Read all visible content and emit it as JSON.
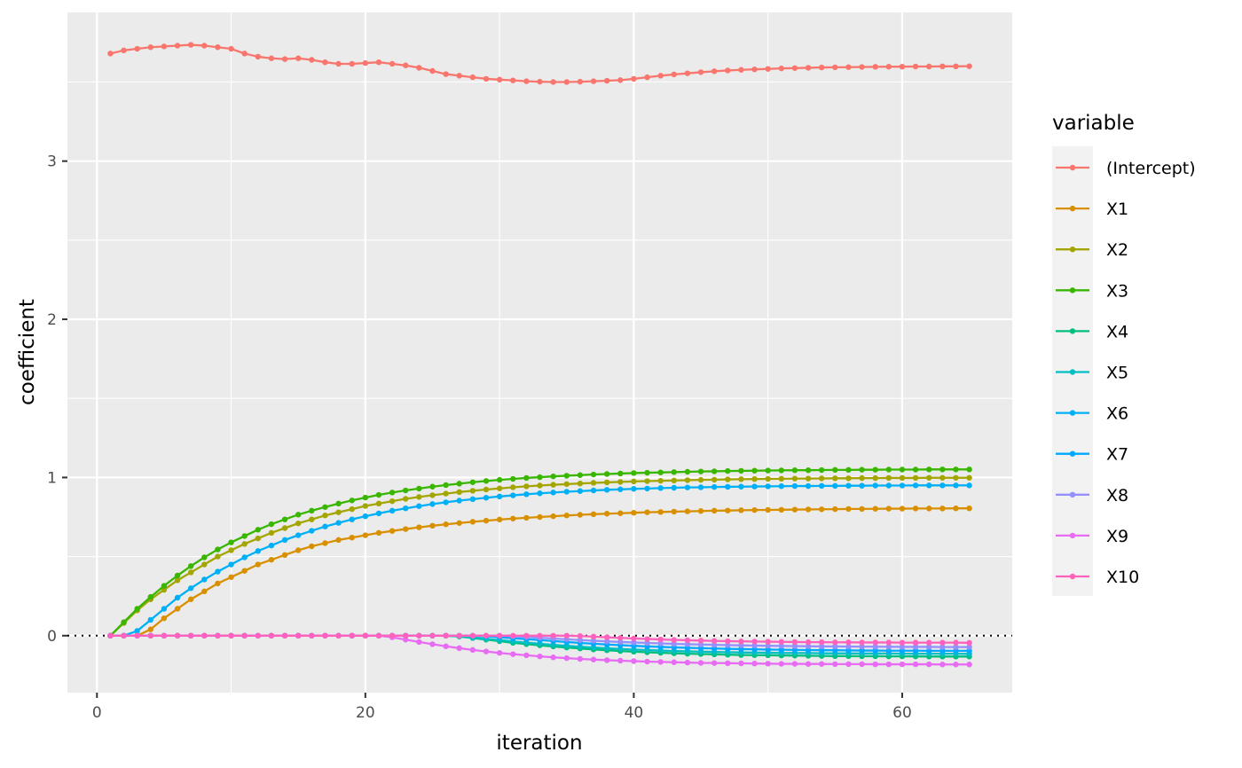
{
  "chart_data": {
    "type": "line",
    "xlabel": "iteration",
    "ylabel": "coefficient",
    "xlim": [
      -2.2,
      68.2
    ],
    "ylim": [
      -0.36,
      3.94
    ],
    "x_ticks": [
      0,
      20,
      40,
      60
    ],
    "x_tick_labels": [
      "0",
      "20",
      "40",
      "60"
    ],
    "y_ticks": [
      0,
      1,
      2,
      3
    ],
    "y_tick_labels": [
      "0",
      "1",
      "2",
      "3"
    ],
    "grid": true,
    "reference_line": {
      "y": 0,
      "style": "dotted",
      "color": "#000000"
    },
    "legend": {
      "title": "variable",
      "position": "right"
    },
    "background": "#ebebeb",
    "x_start": 1,
    "x_step": 1,
    "series": [
      {
        "name": "(Intercept)",
        "color": "#F8766D",
        "values": [
          3.68,
          3.7,
          3.71,
          3.72,
          3.725,
          3.73,
          3.735,
          3.73,
          3.72,
          3.71,
          3.68,
          3.66,
          3.65,
          3.645,
          3.65,
          3.64,
          3.625,
          3.615,
          3.615,
          3.62,
          3.625,
          3.615,
          3.605,
          3.59,
          3.57,
          3.55,
          3.54,
          3.53,
          3.52,
          3.515,
          3.51,
          3.505,
          3.502,
          3.5,
          3.5,
          3.502,
          3.505,
          3.508,
          3.512,
          3.52,
          3.53,
          3.54,
          3.548,
          3.555,
          3.562,
          3.568,
          3.573,
          3.577,
          3.58,
          3.583,
          3.586,
          3.588,
          3.59,
          3.592,
          3.593,
          3.594,
          3.595,
          3.596,
          3.597,
          3.597,
          3.598,
          3.598,
          3.599,
          3.599,
          3.6
        ]
      },
      {
        "name": "X1",
        "color": "#D89000",
        "values": [
          0,
          0,
          0,
          0.04,
          0.11,
          0.17,
          0.23,
          0.28,
          0.33,
          0.37,
          0.41,
          0.45,
          0.48,
          0.51,
          0.54,
          0.565,
          0.585,
          0.605,
          0.62,
          0.635,
          0.65,
          0.662,
          0.674,
          0.685,
          0.695,
          0.704,
          0.712,
          0.72,
          0.727,
          0.734,
          0.74,
          0.745,
          0.75,
          0.755,
          0.76,
          0.764,
          0.768,
          0.771,
          0.774,
          0.777,
          0.78,
          0.782,
          0.784,
          0.786,
          0.788,
          0.79,
          0.791,
          0.793,
          0.794,
          0.795,
          0.796,
          0.797,
          0.798,
          0.799,
          0.8,
          0.801,
          0.801,
          0.802,
          0.803,
          0.803,
          0.804,
          0.804,
          0.804,
          0.805,
          0.805
        ]
      },
      {
        "name": "X2",
        "color": "#A3A500",
        "values": [
          0,
          0.08,
          0.16,
          0.23,
          0.29,
          0.35,
          0.4,
          0.45,
          0.5,
          0.54,
          0.58,
          0.615,
          0.65,
          0.68,
          0.71,
          0.735,
          0.76,
          0.78,
          0.8,
          0.82,
          0.835,
          0.85,
          0.865,
          0.877,
          0.888,
          0.898,
          0.908,
          0.916,
          0.924,
          0.931,
          0.938,
          0.944,
          0.949,
          0.954,
          0.958,
          0.962,
          0.966,
          0.969,
          0.972,
          0.975,
          0.977,
          0.979,
          0.981,
          0.983,
          0.985,
          0.986,
          0.988,
          0.989,
          0.99,
          0.991,
          0.992,
          0.993,
          0.993,
          0.994,
          0.995,
          0.995,
          0.996,
          0.996,
          0.997,
          0.997,
          0.997,
          0.998,
          0.998,
          0.998,
          0.998
        ]
      },
      {
        "name": "X3",
        "color": "#39B600",
        "values": [
          0,
          0.085,
          0.17,
          0.245,
          0.315,
          0.38,
          0.44,
          0.495,
          0.545,
          0.59,
          0.63,
          0.67,
          0.705,
          0.735,
          0.765,
          0.79,
          0.813,
          0.835,
          0.855,
          0.873,
          0.89,
          0.905,
          0.918,
          0.93,
          0.942,
          0.952,
          0.961,
          0.97,
          0.978,
          0.985,
          0.991,
          0.997,
          1.002,
          1.007,
          1.011,
          1.015,
          1.019,
          1.022,
          1.025,
          1.028,
          1.03,
          1.032,
          1.034,
          1.036,
          1.038,
          1.039,
          1.041,
          1.042,
          1.043,
          1.044,
          1.045,
          1.046,
          1.046,
          1.047,
          1.048,
          1.048,
          1.049,
          1.049,
          1.05,
          1.05,
          1.05,
          1.051,
          1.051,
          1.051,
          1.051
        ]
      },
      {
        "name": "X4",
        "color": "#00BF7D",
        "values": [
          0,
          0,
          0,
          0,
          0,
          0,
          0,
          0,
          0,
          0,
          0,
          0,
          0,
          0,
          0,
          0,
          0,
          0,
          0,
          0,
          0,
          0,
          0,
          0,
          0,
          0,
          -0.005,
          -0.015,
          -0.025,
          -0.035,
          -0.045,
          -0.053,
          -0.061,
          -0.068,
          -0.075,
          -0.081,
          -0.087,
          -0.092,
          -0.097,
          -0.101,
          -0.105,
          -0.108,
          -0.111,
          -0.114,
          -0.116,
          -0.118,
          -0.12,
          -0.122,
          -0.123,
          -0.124,
          -0.125,
          -0.126,
          -0.127,
          -0.128,
          -0.129,
          -0.129,
          -0.13,
          -0.13,
          -0.131,
          -0.131,
          -0.131,
          -0.132,
          -0.132,
          -0.132,
          -0.132
        ]
      },
      {
        "name": "X5",
        "color": "#00BFC4",
        "values": [
          0,
          0,
          0,
          0,
          0,
          0,
          0,
          0,
          0,
          0,
          0,
          0,
          0,
          0,
          0,
          0,
          0,
          0,
          0,
          0,
          0,
          0,
          0,
          0,
          0,
          0,
          -0.004,
          -0.012,
          -0.02,
          -0.028,
          -0.036,
          -0.044,
          -0.051,
          -0.058,
          -0.064,
          -0.07,
          -0.075,
          -0.08,
          -0.084,
          -0.088,
          -0.091,
          -0.094,
          -0.097,
          -0.099,
          -0.101,
          -0.103,
          -0.104,
          -0.106,
          -0.107,
          -0.108,
          -0.109,
          -0.11,
          -0.11,
          -0.111,
          -0.112,
          -0.112,
          -0.113,
          -0.113,
          -0.113,
          -0.114,
          -0.114,
          -0.114,
          -0.114,
          -0.114,
          -0.115
        ]
      },
      {
        "name": "X6",
        "color": "#00B0F6",
        "values": [
          0,
          0,
          0.03,
          0.1,
          0.17,
          0.24,
          0.3,
          0.355,
          0.405,
          0.45,
          0.495,
          0.535,
          0.57,
          0.605,
          0.635,
          0.663,
          0.69,
          0.713,
          0.735,
          0.755,
          0.773,
          0.79,
          0.805,
          0.819,
          0.832,
          0.843,
          0.854,
          0.863,
          0.872,
          0.88,
          0.887,
          0.894,
          0.9,
          0.905,
          0.91,
          0.914,
          0.918,
          0.922,
          0.925,
          0.928,
          0.93,
          0.933,
          0.935,
          0.937,
          0.938,
          0.94,
          0.941,
          0.942,
          0.943,
          0.944,
          0.945,
          0.946,
          0.946,
          0.947,
          0.947,
          0.948,
          0.948,
          0.949,
          0.949,
          0.949,
          0.95,
          0.95,
          0.95,
          0.95,
          0.95
        ]
      },
      {
        "name": "X7",
        "color": "#00A9FF",
        "values": [
          0,
          0,
          0,
          0,
          0,
          0,
          0,
          0,
          0,
          0,
          0,
          0,
          0,
          0,
          0,
          0,
          0,
          0,
          0,
          0,
          0,
          0,
          0,
          0,
          0,
          0,
          0,
          0,
          -0.004,
          -0.01,
          -0.016,
          -0.022,
          -0.028,
          -0.034,
          -0.04,
          -0.046,
          -0.051,
          -0.056,
          -0.06,
          -0.064,
          -0.068,
          -0.071,
          -0.074,
          -0.077,
          -0.079,
          -0.081,
          -0.083,
          -0.085,
          -0.086,
          -0.088,
          -0.089,
          -0.09,
          -0.091,
          -0.092,
          -0.092,
          -0.093,
          -0.094,
          -0.094,
          -0.095,
          -0.095,
          -0.095,
          -0.096,
          -0.096,
          -0.096,
          -0.096
        ]
      },
      {
        "name": "X8",
        "color": "#9590FF",
        "values": [
          0,
          0,
          0,
          0,
          0,
          0,
          0,
          0,
          0,
          0,
          0,
          0,
          0,
          0,
          0,
          0,
          0,
          0,
          0,
          0,
          0,
          0,
          0,
          0,
          0,
          0,
          0,
          0,
          0,
          0,
          -0.003,
          -0.008,
          -0.013,
          -0.018,
          -0.023,
          -0.028,
          -0.032,
          -0.036,
          -0.04,
          -0.043,
          -0.046,
          -0.049,
          -0.052,
          -0.054,
          -0.056,
          -0.058,
          -0.06,
          -0.061,
          -0.063,
          -0.064,
          -0.065,
          -0.066,
          -0.067,
          -0.068,
          -0.068,
          -0.069,
          -0.069,
          -0.07,
          -0.07,
          -0.071,
          -0.071,
          -0.071,
          -0.072,
          -0.072,
          -0.072
        ]
      },
      {
        "name": "X9",
        "color": "#E76BF3",
        "values": [
          0,
          0,
          0,
          0,
          0,
          0,
          0,
          0,
          0,
          0,
          0,
          0,
          0,
          0,
          0,
          0,
          0,
          0,
          0,
          0,
          0,
          -0.01,
          -0.025,
          -0.04,
          -0.054,
          -0.067,
          -0.079,
          -0.09,
          -0.1,
          -0.109,
          -0.117,
          -0.124,
          -0.131,
          -0.137,
          -0.142,
          -0.147,
          -0.151,
          -0.155,
          -0.158,
          -0.161,
          -0.164,
          -0.166,
          -0.168,
          -0.17,
          -0.172,
          -0.173,
          -0.174,
          -0.175,
          -0.176,
          -0.177,
          -0.178,
          -0.178,
          -0.179,
          -0.179,
          -0.18,
          -0.18,
          -0.18,
          -0.181,
          -0.181,
          -0.181,
          -0.181,
          -0.181,
          -0.182,
          -0.182,
          -0.182
        ]
      },
      {
        "name": "X10",
        "color": "#FF62BC",
        "values": [
          0,
          0,
          0,
          0,
          0,
          0,
          0,
          0,
          0,
          0,
          0,
          0,
          0,
          0,
          0,
          0,
          0,
          0,
          0,
          0,
          0,
          0,
          0,
          0,
          0,
          0,
          0,
          0,
          0,
          0,
          0,
          0,
          0,
          0,
          0,
          -0.002,
          -0.006,
          -0.01,
          -0.014,
          -0.018,
          -0.021,
          -0.024,
          -0.027,
          -0.029,
          -0.031,
          -0.033,
          -0.035,
          -0.036,
          -0.037,
          -0.038,
          -0.039,
          -0.04,
          -0.041,
          -0.041,
          -0.042,
          -0.042,
          -0.043,
          -0.043,
          -0.043,
          -0.044,
          -0.044,
          -0.044,
          -0.044,
          -0.044,
          -0.045
        ]
      }
    ]
  }
}
